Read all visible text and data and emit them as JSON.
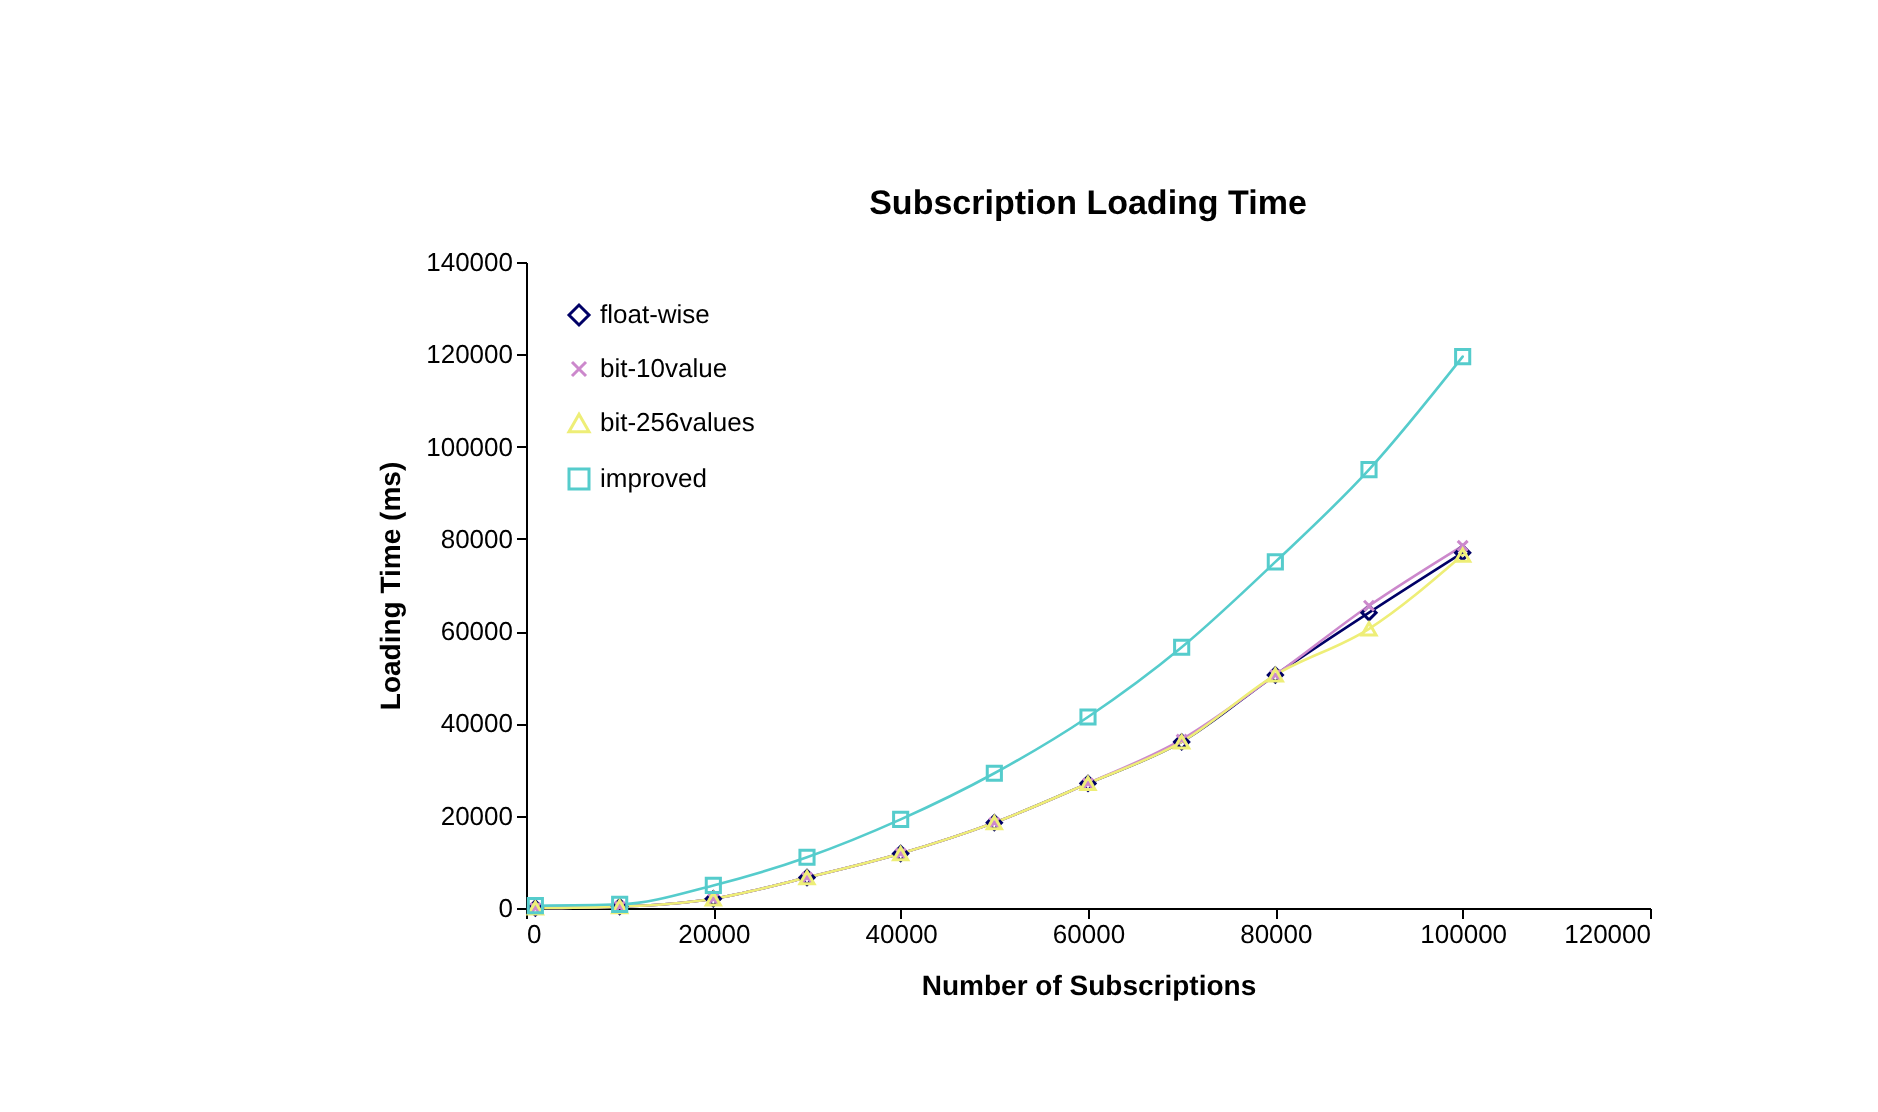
{
  "chart_data": {
    "type": "line",
    "title": "Subscription Loading Time",
    "xlabel": "Number of Subscriptions",
    "ylabel": "Loading Time (ms)",
    "x": [
      1000,
      10000,
      20000,
      30000,
      40000,
      50000,
      60000,
      70000,
      80000,
      90000,
      100000
    ],
    "xlim": [
      0,
      120000
    ],
    "xticks": [
      0,
      20000,
      40000,
      60000,
      80000,
      100000,
      120000
    ],
    "ylim": [
      0,
      140000
    ],
    "yticks": [
      0,
      20000,
      40000,
      60000,
      80000,
      100000,
      120000,
      140000
    ],
    "grid": false,
    "legend": "top left",
    "series": [
      {
        "name": "float-wise",
        "color": "#000066",
        "marker": "diamond",
        "values": [
          0,
          300,
          2000,
          6600,
          11800,
          18500,
          27000,
          36000,
          50500,
          64000,
          77000
        ]
      },
      {
        "name": "bit-10value",
        "color": "#cc88cc",
        "marker": "cross",
        "values": [
          0,
          300,
          2000,
          6600,
          11800,
          18500,
          27000,
          36500,
          50500,
          65500,
          78500
        ]
      },
      {
        "name": "bit-256values",
        "color": "#eeee77",
        "marker": "triangle",
        "values": [
          0,
          300,
          2000,
          6600,
          11800,
          18500,
          27000,
          36000,
          50500,
          60500,
          76500
        ]
      },
      {
        "name": "improved",
        "color": "#55cccc",
        "marker": "square",
        "values": [
          500,
          800,
          4900,
          11000,
          19200,
          29200,
          41400,
          56500,
          75000,
          95000,
          119500
        ]
      }
    ]
  }
}
